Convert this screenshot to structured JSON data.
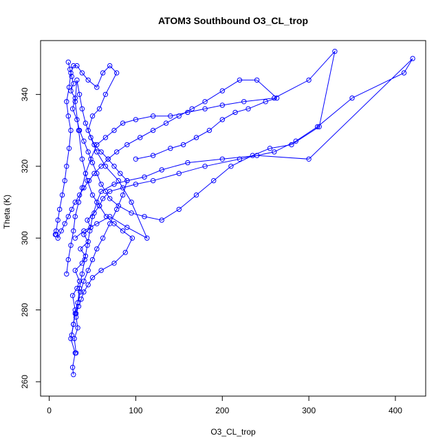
{
  "chart_data": {
    "type": "scatter",
    "title": "ATOM3 Southbound O3_CL_trop",
    "xlabel": "O3_CL_trop",
    "ylabel": "Theta (K)",
    "xlim": [
      -10,
      435
    ],
    "ylim": [
      256,
      355
    ],
    "xticks": [
      0,
      100,
      200,
      300,
      400
    ],
    "yticks": [
      260,
      280,
      300,
      320,
      340
    ],
    "grid": false,
    "legend": "none",
    "marker": "open-circle",
    "connected": true,
    "colors": {
      "series": "#0000ff",
      "axis": "#000000",
      "background": "#ffffff"
    },
    "series": [
      {
        "points": [
          [
            28,
            262
          ],
          [
            27,
            264
          ],
          [
            30,
            268
          ],
          [
            25,
            272
          ],
          [
            28,
            276
          ],
          [
            30,
            280
          ],
          [
            27,
            284
          ],
          [
            32,
            286
          ],
          [
            35,
            288
          ],
          [
            30,
            291
          ],
          [
            38,
            293
          ],
          [
            42,
            295
          ],
          [
            36,
            297
          ],
          [
            45,
            299
          ],
          [
            40,
            301
          ],
          [
            48,
            303
          ],
          [
            44,
            305
          ],
          [
            52,
            307
          ],
          [
            58,
            309
          ],
          [
            62,
            311
          ],
          [
            70,
            313
          ],
          [
            85,
            314
          ],
          [
            100,
            315
          ],
          [
            120,
            316
          ],
          [
            150,
            318
          ],
          [
            180,
            320
          ],
          [
            220,
            322
          ],
          [
            260,
            324
          ],
          [
            285,
            327
          ],
          [
            310,
            331
          ],
          [
            350,
            339
          ],
          [
            410,
            346
          ],
          [
            420,
            350
          ],
          [
            300,
            322
          ],
          [
            240,
            323
          ],
          [
            200,
            322
          ],
          [
            160,
            321
          ],
          [
            130,
            319
          ],
          [
            110,
            317
          ],
          [
            90,
            316
          ],
          [
            75,
            315
          ],
          [
            60,
            313
          ],
          [
            55,
            310
          ],
          [
            50,
            306
          ],
          [
            47,
            302
          ],
          [
            44,
            298
          ],
          [
            41,
            294
          ],
          [
            38,
            290
          ],
          [
            35,
            286
          ],
          [
            33,
            282
          ],
          [
            31,
            278
          ],
          [
            33,
            275
          ],
          [
            29,
            272
          ],
          [
            31,
            268
          ]
        ]
      },
      {
        "points": [
          [
            22,
            349
          ],
          [
            24,
            347
          ],
          [
            26,
            345
          ],
          [
            28,
            343
          ],
          [
            25,
            341
          ],
          [
            30,
            339
          ],
          [
            27,
            336
          ],
          [
            32,
            333
          ],
          [
            35,
            330
          ],
          [
            40,
            327
          ],
          [
            45,
            324
          ],
          [
            50,
            321
          ],
          [
            55,
            318
          ],
          [
            60,
            315
          ],
          [
            65,
            313
          ],
          [
            70,
            311
          ],
          [
            80,
            309
          ],
          [
            95,
            307
          ],
          [
            110,
            306
          ],
          [
            130,
            305
          ],
          [
            150,
            308
          ],
          [
            170,
            312
          ],
          [
            190,
            316
          ],
          [
            210,
            320
          ],
          [
            235,
            323
          ],
          [
            255,
            325
          ],
          [
            280,
            326
          ],
          [
            312,
            331
          ],
          [
            330,
            352
          ],
          [
            300,
            344
          ],
          [
            260,
            339
          ],
          [
            225,
            338
          ],
          [
            200,
            337
          ],
          [
            180,
            336
          ],
          [
            160,
            335
          ],
          [
            140,
            334
          ],
          [
            120,
            334
          ],
          [
            100,
            333
          ],
          [
            85,
            332
          ],
          [
            75,
            330
          ],
          [
            65,
            328
          ],
          [
            55,
            326
          ],
          [
            48,
            322
          ],
          [
            42,
            318
          ],
          [
            38,
            314
          ],
          [
            34,
            310
          ],
          [
            30,
            306
          ],
          [
            28,
            302
          ],
          [
            25,
            298
          ],
          [
            22,
            294
          ],
          [
            20,
            290
          ]
        ]
      },
      {
        "points": [
          [
            7,
            301
          ],
          [
            8,
            302
          ],
          [
            10,
            305
          ],
          [
            12,
            308
          ],
          [
            15,
            312
          ],
          [
            18,
            316
          ],
          [
            20,
            320
          ],
          [
            23,
            325
          ],
          [
            25,
            330
          ],
          [
            22,
            334
          ],
          [
            20,
            338
          ],
          [
            23,
            342
          ],
          [
            25,
            346
          ],
          [
            28,
            348
          ],
          [
            32,
            348
          ],
          [
            38,
            346
          ],
          [
            45,
            344
          ],
          [
            55,
            342
          ],
          [
            62,
            346
          ],
          [
            70,
            348
          ],
          [
            78,
            346
          ],
          [
            65,
            340
          ],
          [
            58,
            336
          ],
          [
            50,
            334
          ],
          [
            45,
            330
          ],
          [
            52,
            326
          ],
          [
            60,
            324
          ],
          [
            68,
            322
          ],
          [
            75,
            320
          ],
          [
            82,
            318
          ],
          [
            90,
            316
          ],
          [
            85,
            312
          ],
          [
            78,
            308
          ],
          [
            70,
            304
          ],
          [
            62,
            300
          ],
          [
            55,
            297
          ],
          [
            50,
            294
          ],
          [
            45,
            291
          ],
          [
            40,
            288
          ],
          [
            36,
            285
          ],
          [
            33,
            282
          ],
          [
            30,
            279
          ],
          [
            28,
            276
          ],
          [
            26,
            273
          ]
        ]
      },
      {
        "points": [
          [
            30,
            300
          ],
          [
            40,
            302
          ],
          [
            55,
            304
          ],
          [
            70,
            306
          ],
          [
            90,
            303
          ],
          [
            113,
            300
          ],
          [
            95,
            310
          ],
          [
            80,
            316
          ],
          [
            65,
            320
          ],
          [
            55,
            324
          ],
          [
            48,
            328
          ],
          [
            42,
            332
          ],
          [
            38,
            336
          ],
          [
            35,
            340
          ],
          [
            32,
            344
          ],
          [
            30,
            338
          ],
          [
            34,
            330
          ],
          [
            38,
            322
          ],
          [
            44,
            316
          ],
          [
            50,
            312
          ],
          [
            58,
            309
          ],
          [
            66,
            306
          ],
          [
            75,
            304
          ],
          [
            85,
            302
          ],
          [
            96,
            300
          ],
          [
            88,
            296
          ],
          [
            75,
            293
          ],
          [
            60,
            291
          ],
          [
            50,
            289
          ],
          [
            45,
            287
          ],
          [
            40,
            285
          ],
          [
            37,
            283
          ],
          [
            34,
            281
          ],
          [
            31,
            279
          ]
        ]
      },
      {
        "points": [
          [
            100,
            322
          ],
          [
            120,
            323
          ],
          [
            140,
            325
          ],
          [
            155,
            326
          ],
          [
            170,
            328
          ],
          [
            185,
            330
          ],
          [
            200,
            333
          ],
          [
            215,
            335
          ],
          [
            230,
            336
          ],
          [
            250,
            338
          ],
          [
            263,
            339
          ],
          [
            240,
            344
          ],
          [
            220,
            344
          ],
          [
            200,
            341
          ],
          [
            180,
            338
          ],
          [
            165,
            336
          ],
          [
            150,
            334
          ],
          [
            135,
            332
          ],
          [
            120,
            330
          ],
          [
            105,
            328
          ],
          [
            90,
            326
          ],
          [
            78,
            324
          ],
          [
            68,
            322
          ],
          [
            60,
            320
          ],
          [
            52,
            318
          ],
          [
            46,
            316
          ],
          [
            40,
            314
          ],
          [
            35,
            312
          ],
          [
            30,
            310
          ],
          [
            26,
            308
          ],
          [
            22,
            306
          ],
          [
            18,
            304
          ],
          [
            14,
            302
          ],
          [
            10,
            300
          ],
          [
            8,
            301
          ]
        ]
      }
    ]
  }
}
